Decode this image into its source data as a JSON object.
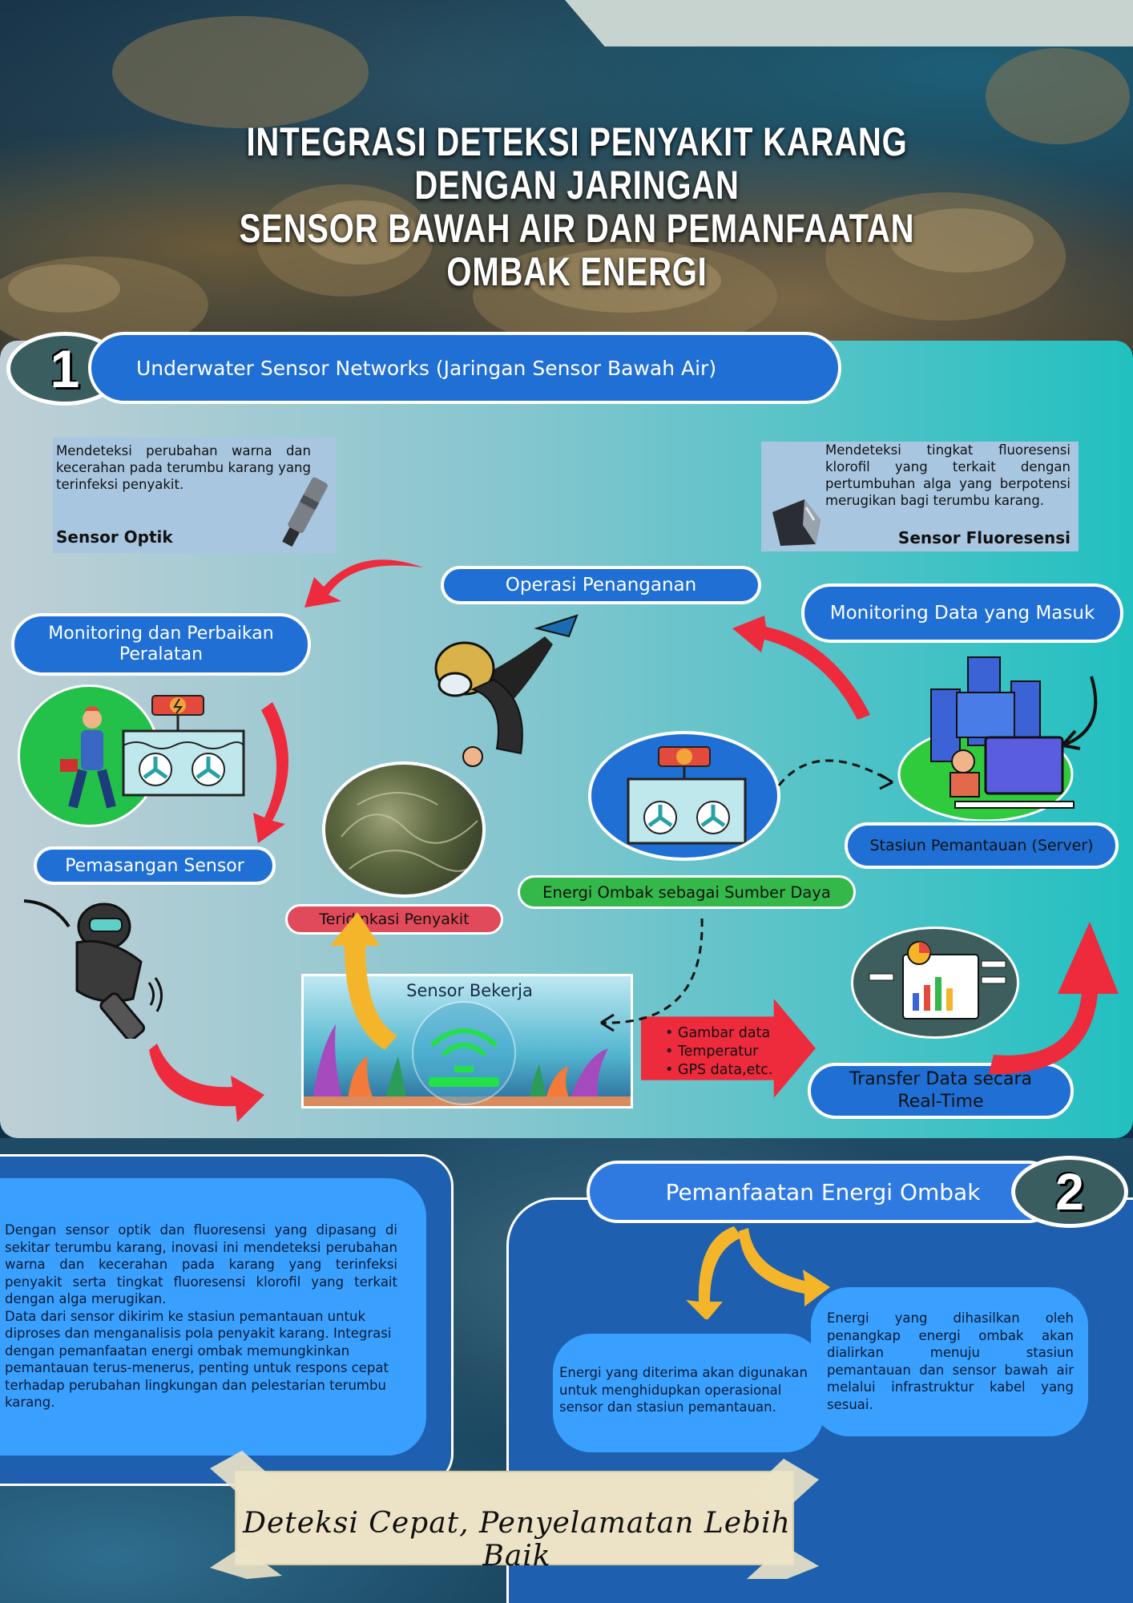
{
  "header": {
    "title_line1": "INTEGRASI DETEKSI PENYAKIT KARANG DENGAN JARINGAN",
    "title_line2": "SENSOR BAWAH AIR DAN  PEMANFAATAN OMBAK ENERGI"
  },
  "section1": {
    "number": "1",
    "heading": "Underwater Sensor Networks (Jaringan Sensor Bawah Air)",
    "sensor_optik": {
      "desc": "Mendeteksi perubahan warna dan kecerahan pada terumbu karang yang terinfeksi penyakit.",
      "name": "Sensor Optik"
    },
    "sensor_fluoresensi": {
      "desc": "Mendeteksi tingkat fluoresensi klorofil yang terkait dengan pertumbuhan alga yang berpotensi merugikan bagi terumbu karang.",
      "name": "Sensor Fluoresensi"
    },
    "flow": {
      "operasi": "Operasi Penanganan",
      "monitoring_perbaikan": "Monitoring dan Perbaikan Peralatan",
      "monitoring_data": "Monitoring Data yang Masuk",
      "pemasangan": "Pemasangan Sensor",
      "teridentifikasi": "Teridinkasi Penyakit",
      "energi": "Energi Ombak sebagai Sumber Daya",
      "stasiun": "Stasiun Pemantauan (Server)",
      "sensor_bekerja": "Sensor Bekerja",
      "data_items": [
        "Gambar data",
        "Temperatur",
        "GPS data,etc."
      ],
      "transfer": "Transfer Data secara Real-Time"
    }
  },
  "summary": {
    "para1": "Dengan sensor optik dan fluoresensi yang dipasang di sekitar terumbu karang, inovasi ini mendeteksi perubahan warna dan kecerahan pada karang yang terinfeksi penyakit serta tingkat fluoresensi klorofil yang terkait dengan alga merugikan.",
    "para2": "Data dari sensor dikirim ke stasiun pemantauan untuk diproses dan menganalisis pola penyakit karang. Integrasi dengan pemanfaatan energi ombak memungkinkan pemantauan terus-menerus, penting untuk respons cepat terhadap perubahan lingkungan dan pelestarian terumbu karang."
  },
  "section2": {
    "number": "2",
    "heading": "Pemanfaatan Energi Ombak",
    "left_text": "Energi yang diterima akan digunakan untuk menghidupkan operasional sensor dan stasiun pemantauan.",
    "right_text": "Energi yang dihasilkan oleh penangkap energi ombak akan dialirkan menuju stasiun pemantauan dan sensor bawah air melalui infrastruktur kabel yang sesuai."
  },
  "tagline": "Deteksi Cepat, Penyelamatan Lebih Baik",
  "colors": {
    "pill_blue": "#1f6fd4",
    "arrow_red": "#ee2a3d",
    "arrow_yellow": "#f4b52a",
    "green_pill": "#34b84a",
    "pink_pill": "#e14a5a"
  }
}
